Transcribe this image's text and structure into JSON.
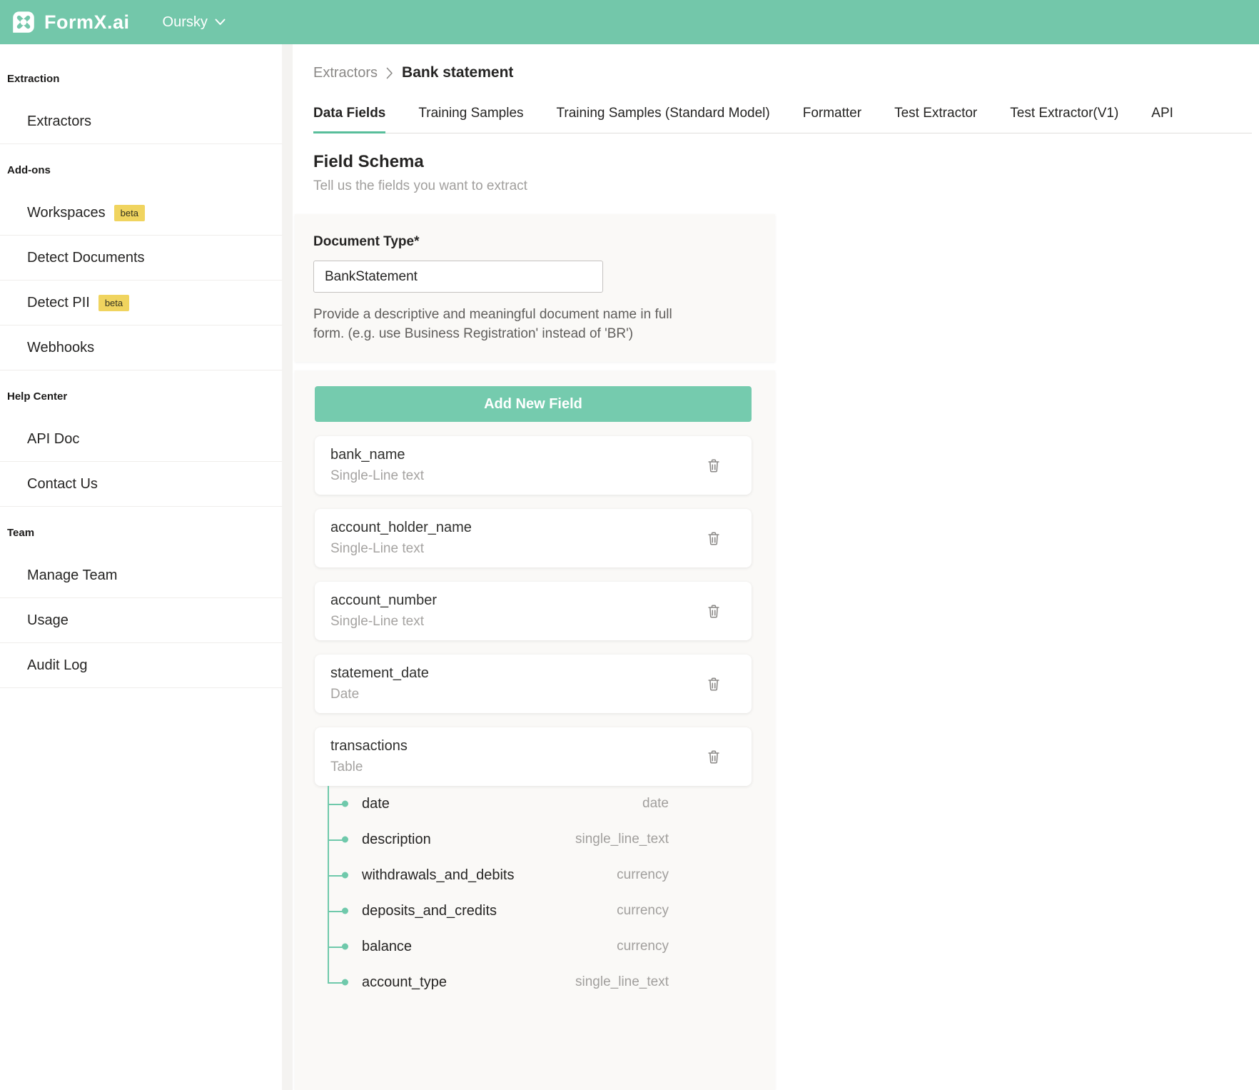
{
  "colors": {
    "header_green": "#73c7aa",
    "button_green": "#75cbae",
    "tab_underline_green": "#58be9b",
    "tree_green": "#6fc9ab",
    "beta_badge_yellow": "#f0d45f"
  },
  "header": {
    "brand": "FormX.ai",
    "org": "Oursky"
  },
  "sidebar": {
    "sections": [
      {
        "title": "Extraction",
        "items": [
          {
            "label": "Extractors"
          }
        ]
      },
      {
        "title": "Add-ons",
        "items": [
          {
            "label": "Workspaces",
            "badge": "beta"
          },
          {
            "label": "Detect Documents"
          },
          {
            "label": "Detect PII",
            "badge": "beta"
          },
          {
            "label": "Webhooks"
          }
        ]
      },
      {
        "title": "Help Center",
        "items": [
          {
            "label": "API Doc"
          },
          {
            "label": "Contact Us"
          }
        ]
      },
      {
        "title": "Team",
        "items": [
          {
            "label": "Manage Team"
          },
          {
            "label": "Usage"
          },
          {
            "label": "Audit Log"
          }
        ]
      }
    ]
  },
  "breadcrumb": {
    "parent": "Extractors",
    "current": "Bank statement"
  },
  "tabs": [
    {
      "label": "Data Fields",
      "active": true
    },
    {
      "label": "Training Samples"
    },
    {
      "label": "Training Samples (Standard Model)"
    },
    {
      "label": "Formatter"
    },
    {
      "label": "Test Extractor"
    },
    {
      "label": "Test Extractor(V1)"
    },
    {
      "label": "API"
    }
  ],
  "schema": {
    "title": "Field Schema",
    "subtitle": "Tell us the fields you want to extract",
    "document_type": {
      "label": "Document Type*",
      "value": "BankStatement",
      "help": "Provide a descriptive and meaningful document name in full form. (e.g. use Business Registration' instead of 'BR')"
    },
    "add_button_label": "Add New Field",
    "fields": [
      {
        "name": "bank_name",
        "type": "Single-Line text"
      },
      {
        "name": "account_holder_name",
        "type": "Single-Line text"
      },
      {
        "name": "account_number",
        "type": "Single-Line text"
      },
      {
        "name": "statement_date",
        "type": "Date"
      },
      {
        "name": "transactions",
        "type": "Table",
        "subfields": [
          {
            "name": "date",
            "type": "date"
          },
          {
            "name": "description",
            "type": "single_line_text"
          },
          {
            "name": "withdrawals_and_debits",
            "type": "currency"
          },
          {
            "name": "deposits_and_credits",
            "type": "currency"
          },
          {
            "name": "balance",
            "type": "currency"
          },
          {
            "name": "account_type",
            "type": "single_line_text"
          }
        ]
      }
    ]
  }
}
